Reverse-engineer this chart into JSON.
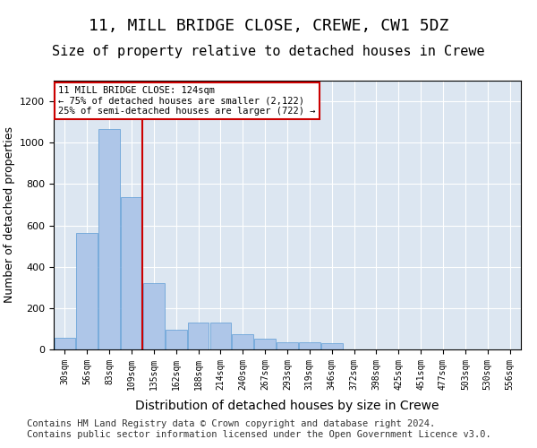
{
  "title1": "11, MILL BRIDGE CLOSE, CREWE, CW1 5DZ",
  "title2": "Size of property relative to detached houses in Crewe",
  "xlabel": "Distribution of detached houses by size in Crewe",
  "ylabel": "Number of detached properties",
  "categories": [
    "30sqm",
    "56sqm",
    "83sqm",
    "109sqm",
    "135sqm",
    "162sqm",
    "188sqm",
    "214sqm",
    "240sqm",
    "267sqm",
    "293sqm",
    "319sqm",
    "346sqm",
    "372sqm",
    "398sqm",
    "425sqm",
    "451sqm",
    "477sqm",
    "503sqm",
    "530sqm",
    "556sqm"
  ],
  "values": [
    58,
    565,
    1065,
    735,
    320,
    95,
    130,
    130,
    75,
    50,
    35,
    35,
    30,
    0,
    0,
    0,
    0,
    0,
    0,
    0,
    0
  ],
  "bar_color": "#aec6e8",
  "bar_edge_color": "#5b9bd5",
  "vline_x": 4,
  "vline_color": "#cc0000",
  "annotation_box_text": "11 MILL BRIDGE CLOSE: 124sqm\n← 75% of detached houses are smaller (2,122)\n25% of semi-detached houses are larger (722) →",
  "annotation_box_color": "#cc0000",
  "ylim": [
    0,
    1300
  ],
  "yticks": [
    0,
    200,
    400,
    600,
    800,
    1000,
    1200
  ],
  "footer": "Contains HM Land Registry data © Crown copyright and database right 2024.\nContains public sector information licensed under the Open Government Licence v3.0.",
  "bg_color": "#dce6f1",
  "plot_bg_color": "#dce6f1",
  "title1_fontsize": 13,
  "title2_fontsize": 11,
  "xlabel_fontsize": 10,
  "ylabel_fontsize": 9,
  "footer_fontsize": 7.5
}
